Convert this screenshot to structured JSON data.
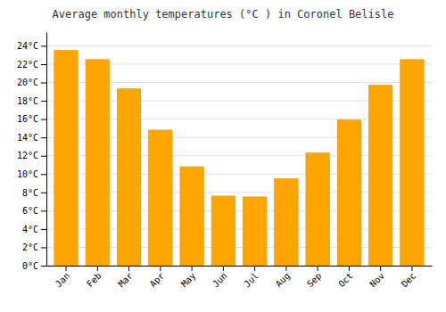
{
  "chart_data": {
    "type": "bar",
    "title": "Average monthly temperatures (°C ) in Coronel Belisle",
    "categories": [
      "Jan",
      "Feb",
      "Mar",
      "Apr",
      "May",
      "Jun",
      "Jul",
      "Aug",
      "Sep",
      "Oct",
      "Nov",
      "Dec"
    ],
    "values": [
      23.5,
      22.5,
      19.3,
      14.8,
      10.8,
      7.6,
      7.5,
      9.5,
      12.3,
      15.9,
      19.7,
      22.5
    ],
    "color": "#FFA500",
    "ylim": [
      0,
      25.5
    ],
    "yticks": [
      {
        "value": 0,
        "label": "0°C"
      },
      {
        "value": 2,
        "label": "2°C"
      },
      {
        "value": 4,
        "label": "4°C"
      },
      {
        "value": 6,
        "label": "6°C"
      },
      {
        "value": 8,
        "label": "8°C"
      },
      {
        "value": 10,
        "label": "10°C"
      },
      {
        "value": 12,
        "label": "12°C"
      },
      {
        "value": 14,
        "label": "14°C"
      },
      {
        "value": 16,
        "label": "16°C"
      },
      {
        "value": 18,
        "label": "18°C"
      },
      {
        "value": 20,
        "label": "20°C"
      },
      {
        "value": 22,
        "label": "22°C"
      },
      {
        "value": 24,
        "label": "24°C"
      }
    ],
    "grid": true
  }
}
